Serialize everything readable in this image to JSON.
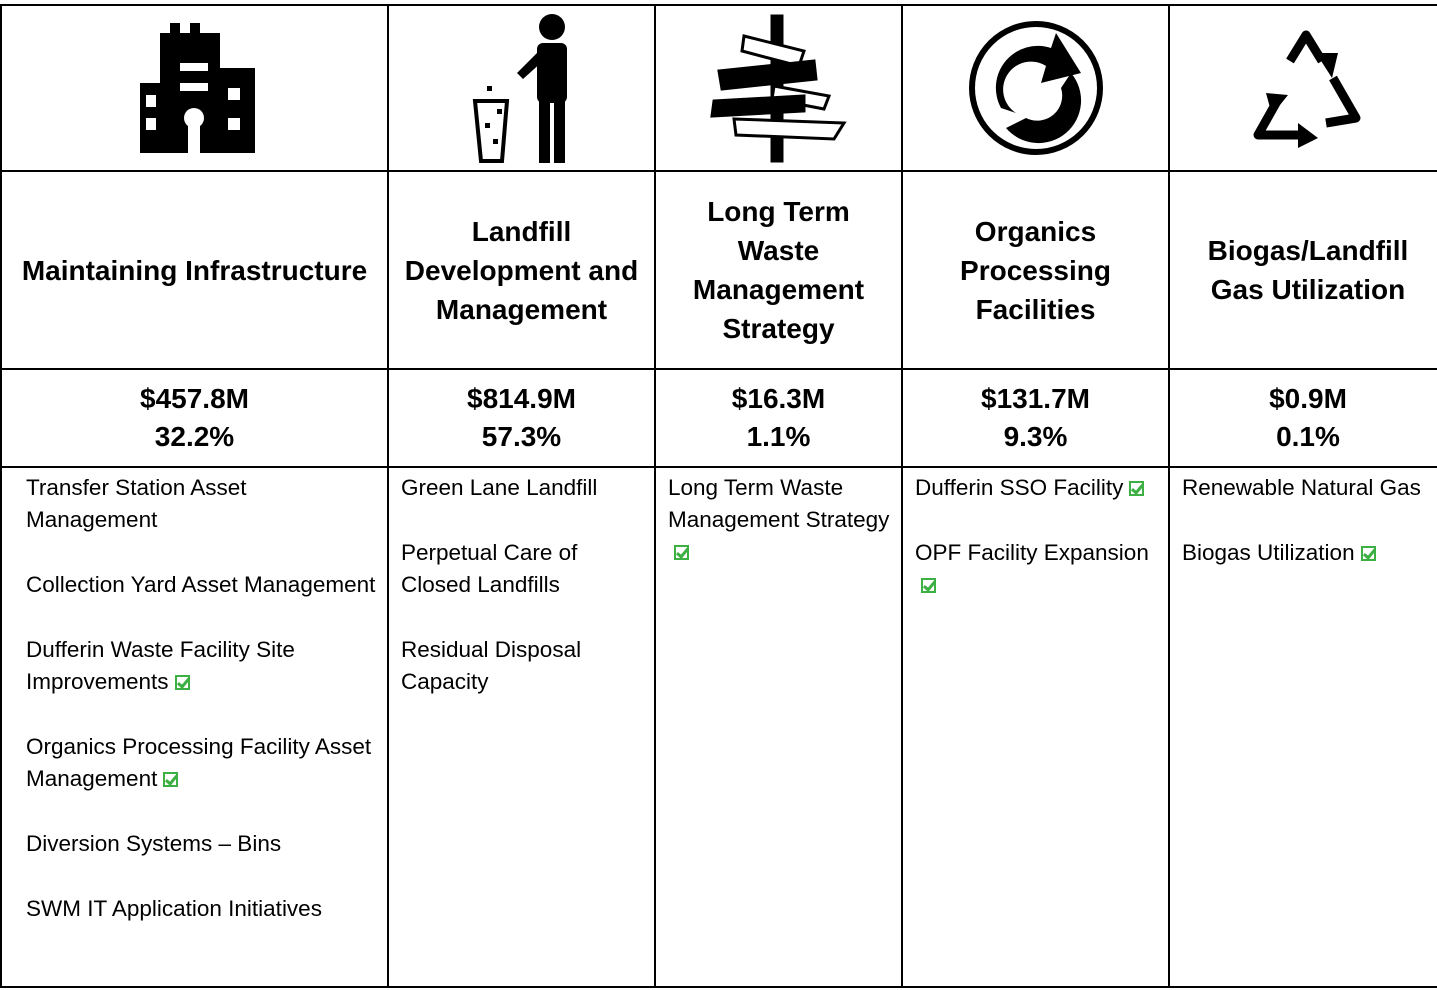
{
  "table": {
    "columns": [
      {
        "heading": "Maintaining Infrastructure",
        "amount": "$457.8M",
        "percent": "32.2%",
        "items": [
          {
            "text": "Transfer Station Asset Management",
            "checked": false
          },
          {
            "text": "Collection Yard Asset Management",
            "checked": false
          },
          {
            "text": "Dufferin Waste Facility Site Improvements",
            "checked": true
          },
          {
            "text": "Organics Processing Facility Asset Management",
            "checked": true
          },
          {
            "text": "Diversion Systems – Bins",
            "checked": false
          },
          {
            "text": "SWM IT Application Initiatives",
            "checked": false
          }
        ]
      },
      {
        "heading": "Landfill Development and Management",
        "amount": "$814.9M",
        "percent": "57.3%",
        "items": [
          {
            "text": "Green Lane Landfill",
            "checked": false
          },
          {
            "text": "Perpetual Care of Closed Landfills",
            "checked": false
          },
          {
            "text": "Residual Disposal Capacity",
            "checked": false
          }
        ]
      },
      {
        "heading": "Long Term Waste Management Strategy",
        "amount": "$16.3M",
        "percent": "1.1%",
        "items": [
          {
            "text": "Long Term Waste Management Strategy",
            "checked": true
          }
        ]
      },
      {
        "heading": "Organics Processing Facilities",
        "amount": "$131.7M",
        "percent": "9.3%",
        "items": [
          {
            "text": "Dufferin SSO Facility",
            "checked": true
          },
          {
            "text": "OPF Facility Expansion",
            "checked": true
          }
        ]
      },
      {
        "heading": "Biogas/Landfill Gas Utilization",
        "amount": "$0.9M",
        "percent": "0.1%",
        "items": [
          {
            "text": "Renewable Natural Gas",
            "checked": false
          },
          {
            "text": "Biogas Utilization",
            "checked": true
          }
        ]
      }
    ]
  }
}
